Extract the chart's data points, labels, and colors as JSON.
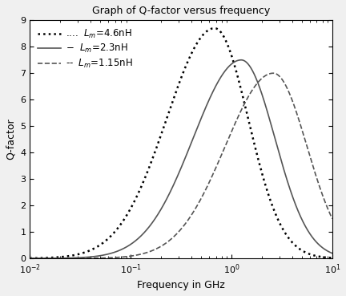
{
  "title": "Graph of Q-factor versus frequency",
  "xlabel": "Frequency in GHz",
  "ylabel": "Q-factor",
  "xlim": [
    0.01,
    10
  ],
  "ylim": [
    0,
    9
  ],
  "yticks": [
    0,
    1,
    2,
    3,
    4,
    5,
    6,
    7,
    8,
    9
  ],
  "curves": [
    {
      "name": "Lm=4.6nH",
      "legend_text": "....  $L_m$=4.6nH",
      "linestyle": "dotted",
      "linewidth": 1.8,
      "color": "#000000",
      "peak_freq": 0.68,
      "peak_q": 8.7,
      "rise_slope": 2.2,
      "fall_slope": 4.5
    },
    {
      "name": "Lm=2.3nH",
      "legend_text": "$-$  $L_m$=2.3nH",
      "linestyle": "solid",
      "linewidth": 1.2,
      "color": "#555555",
      "peak_freq": 1.25,
      "peak_q": 7.5,
      "rise_slope": 2.2,
      "fall_slope": 4.5
    },
    {
      "name": "Lm=1.15nH",
      "legend_text": "--  $L_m$=1.15nH",
      "linestyle": "dashed",
      "linewidth": 1.2,
      "color": "#555555",
      "peak_freq": 2.6,
      "peak_q": 7.0,
      "rise_slope": 2.2,
      "fall_slope": 4.5
    }
  ],
  "legend_labels": [
    "....  $L_m$=4.6nH",
    "$-$  $L_m$=2.3nH",
    "--  $L_m$=1.15nH"
  ],
  "background_color": "#f0f0f0",
  "figsize": [
    4.32,
    3.69
  ],
  "dpi": 100
}
